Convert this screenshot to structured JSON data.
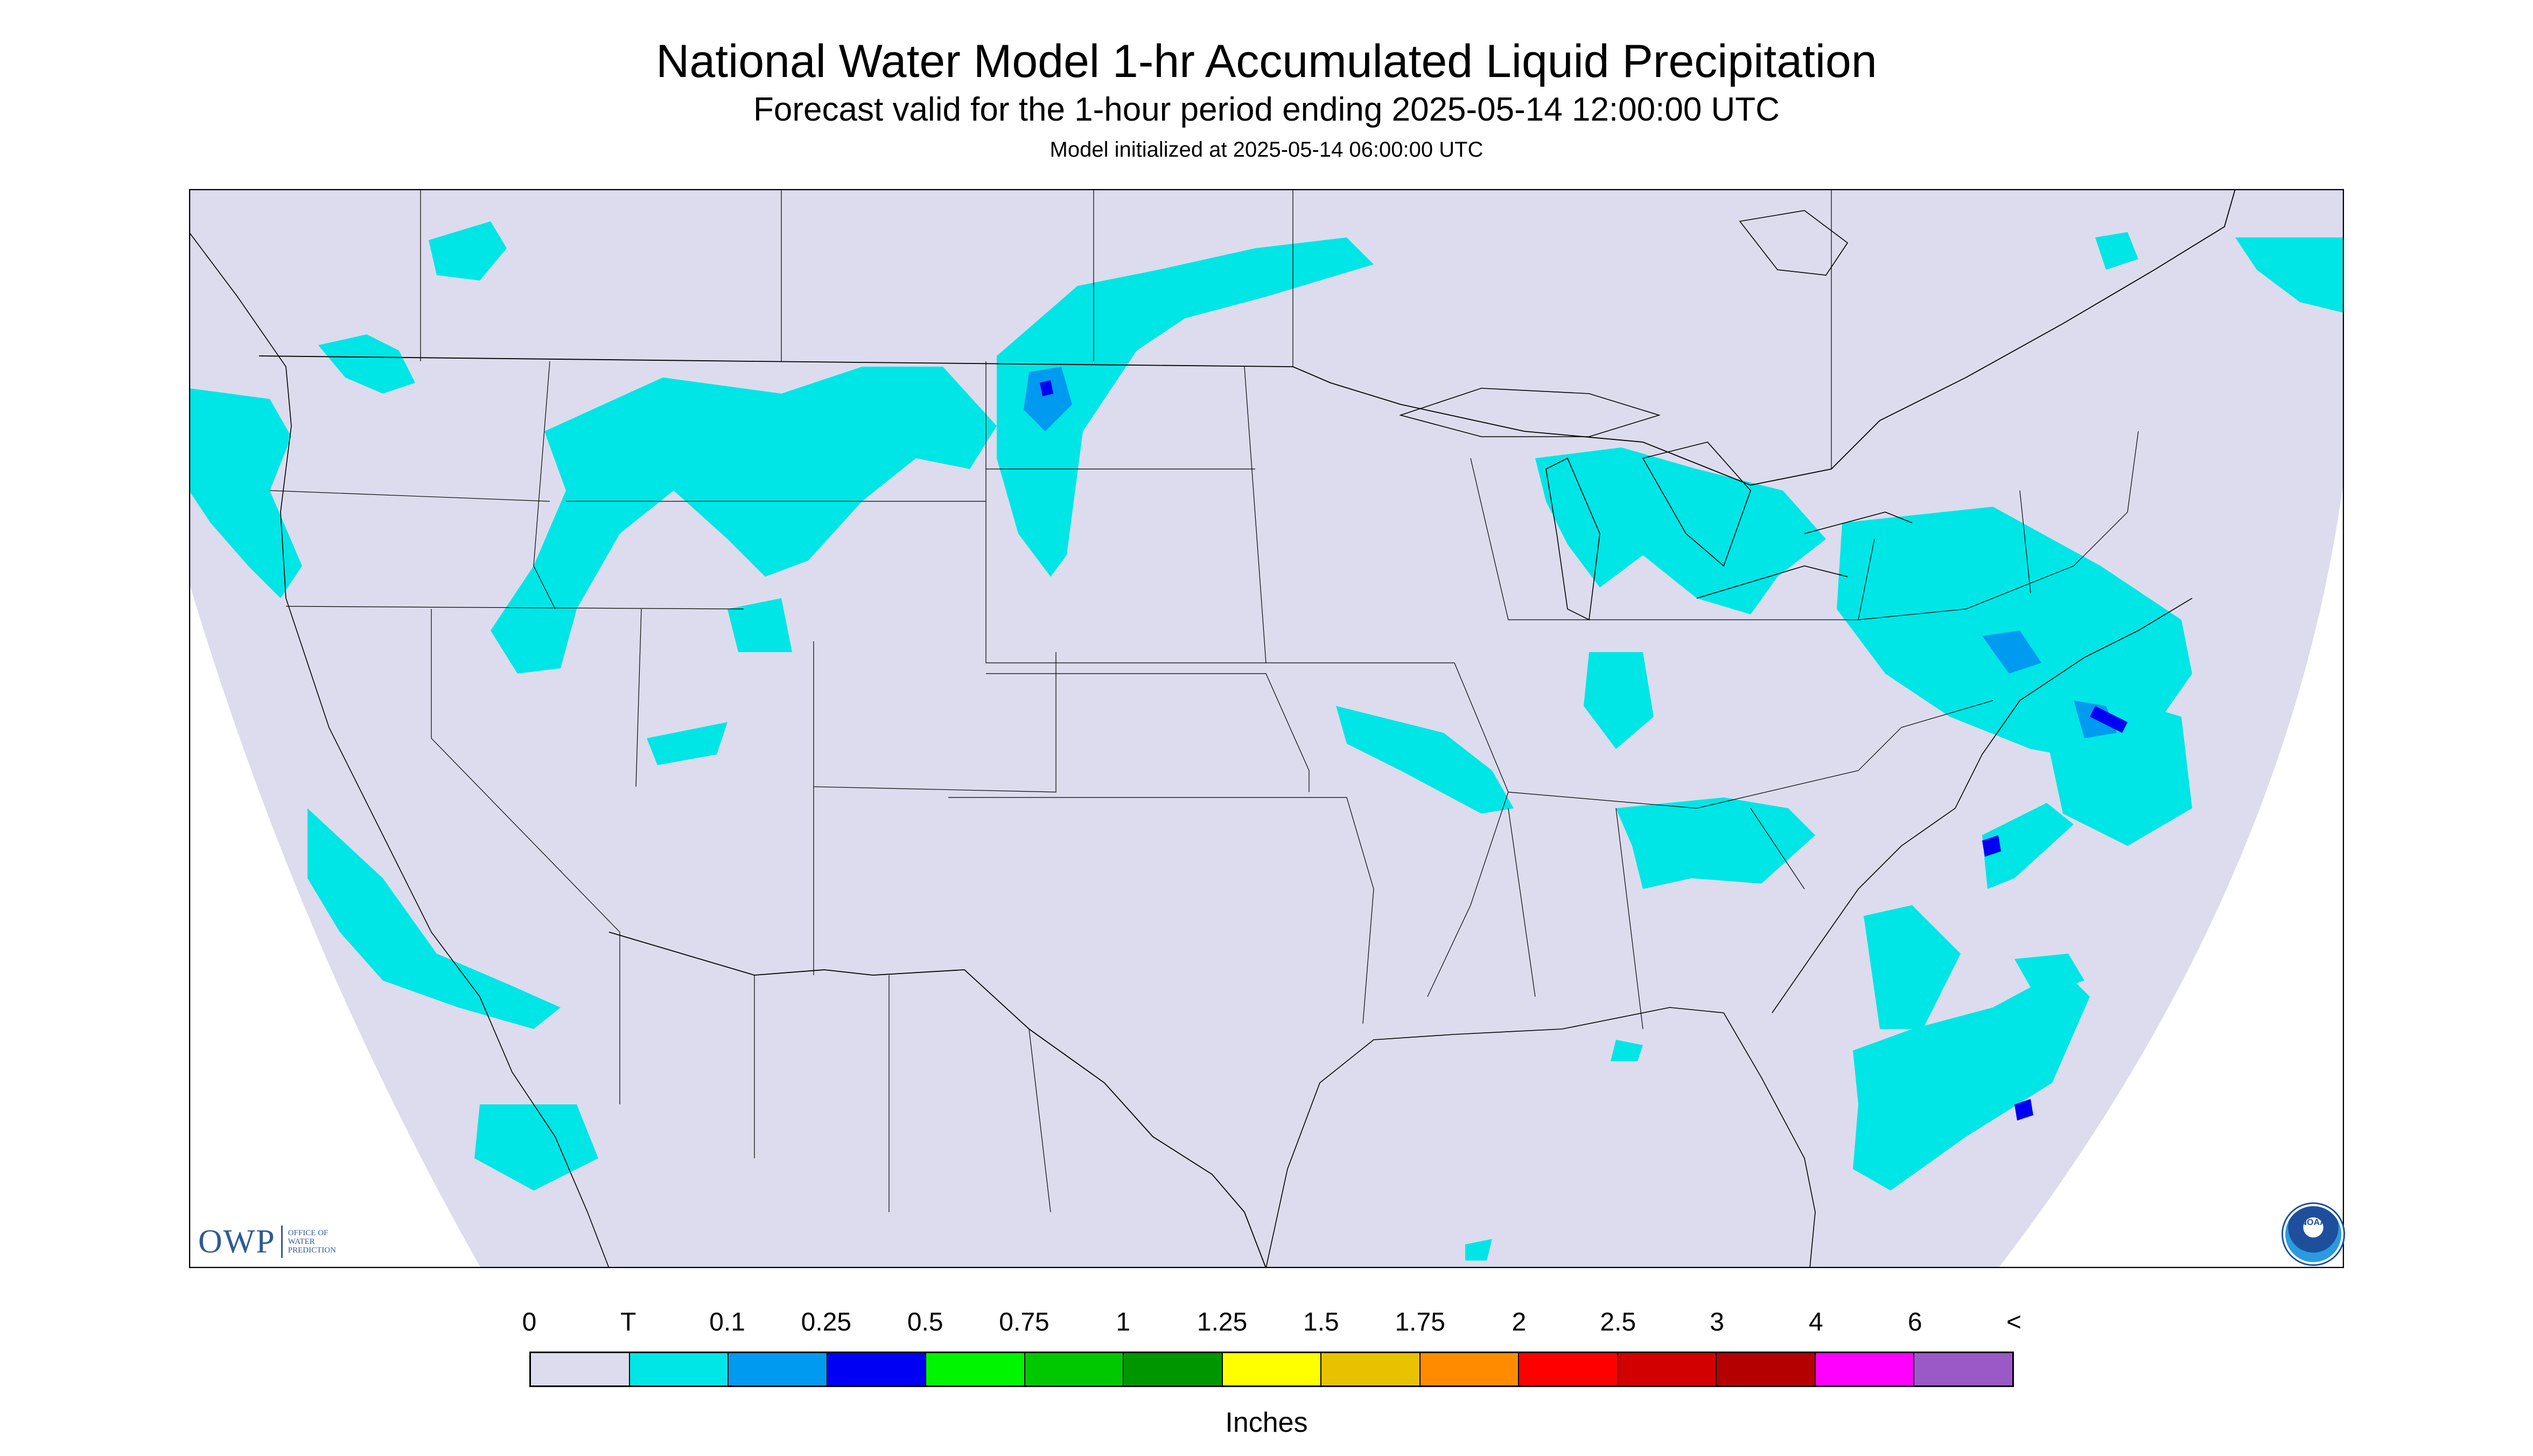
{
  "header": {
    "title": "National Water Model 1-hr Accumulated Liquid Precipitation",
    "subtitle": "Forecast valid for the 1-hour period ending 2025-05-14 12:00:00 UTC",
    "initialized": "Model initialized at 2025-05-14 06:00:00 UTC"
  },
  "logos": {
    "owp_text": "OWP",
    "owp_sub": "OFFICE OF\nWATER\nPREDICTION",
    "noaa_text": "NOAA"
  },
  "colors": {
    "domain_fill": "#dcdcee",
    "precip_trace": "#00e5e5",
    "precip_010": "#009af0",
    "precip_025": "#0000f5",
    "border": "#000000"
  },
  "legend": {
    "labels": [
      "0",
      "T",
      "0.1",
      "0.25",
      "0.5",
      "0.75",
      "1",
      "1.25",
      "1.5",
      "1.75",
      "2",
      "2.5",
      "3",
      "4",
      "6",
      "<"
    ],
    "colors": [
      "#dcdcee",
      "#00e5e5",
      "#009af0",
      "#0000f5",
      "#00f500",
      "#00c800",
      "#009600",
      "#ffff00",
      "#e6c200",
      "#ff8c00",
      "#ff0000",
      "#d20000",
      "#b40000",
      "#ff00ff",
      "#9b59c8"
    ],
    "units": "Inches"
  }
}
